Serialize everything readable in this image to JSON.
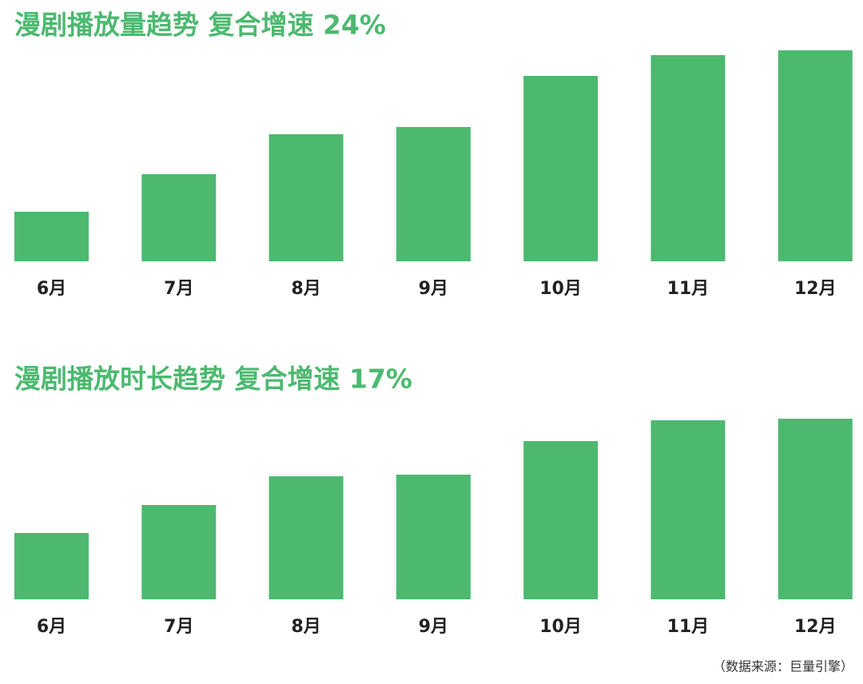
{
  "chart_data": [
    {
      "type": "bar",
      "title": "漫剧播放量趋势  复合增速  24%",
      "categories": [
        "6月",
        "7月",
        "8月",
        "9月",
        "10月",
        "11月",
        "12月"
      ],
      "values": [
        62,
        109,
        159,
        168,
        232,
        258,
        264
      ],
      "color": "#4cb96f",
      "ylim": [
        0,
        270
      ]
    },
    {
      "type": "bar",
      "title": "漫剧播放时长趋势  复合增速  17%",
      "categories": [
        "6月",
        "7月",
        "8月",
        "9月",
        "10月",
        "11月",
        "12月"
      ],
      "values": [
        83,
        118,
        154,
        156,
        198,
        224,
        226
      ],
      "color": "#4cb96f",
      "ylim": [
        0,
        270
      ]
    }
  ],
  "source": "（数据来源：巨量引擎）"
}
